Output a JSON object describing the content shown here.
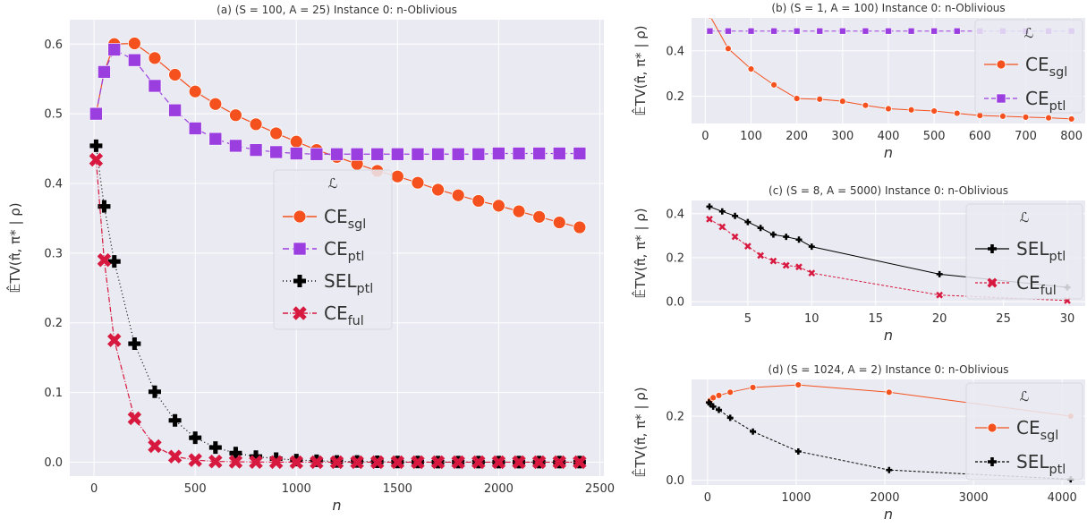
{
  "chart_data": [
    {
      "id": "a",
      "type": "line",
      "title": "(a) (S = 100, A = 25) Instance 0: n-Oblivious",
      "xlabel": "n",
      "ylabel": "𝔼̂TV(π̂, π* | ρ)",
      "xlim": [
        -120,
        2520
      ],
      "ylim": [
        -0.02,
        0.635
      ],
      "xticks": [
        0,
        500,
        1000,
        1500,
        2000,
        2500
      ],
      "yticks": [
        0.0,
        0.1,
        0.2,
        0.3,
        0.4,
        0.5,
        0.6
      ],
      "ytick_labels": [
        "0.0",
        "0.1",
        "0.2",
        "0.3",
        "0.4",
        "0.5",
        "0.6"
      ],
      "grid": true,
      "legend_title": "ℒ",
      "legend_position": "center-right",
      "series": [
        {
          "name": "CE",
          "sub": "sgl",
          "color": "#f4511e",
          "marker": "circle",
          "dash": "",
          "x": [
            10,
            50,
            100,
            200,
            300,
            400,
            500,
            600,
            700,
            800,
            900,
            1000,
            1100,
            1200,
            1300,
            1400,
            1500,
            1600,
            1700,
            1800,
            1900,
            2000,
            2100,
            2200,
            2300,
            2400
          ],
          "y": [
            0.5,
            0.56,
            0.6,
            0.601,
            0.58,
            0.556,
            0.532,
            0.514,
            0.498,
            0.485,
            0.472,
            0.46,
            0.448,
            0.438,
            0.428,
            0.418,
            0.41,
            0.401,
            0.391,
            0.383,
            0.375,
            0.368,
            0.36,
            0.352,
            0.344,
            0.337
          ]
        },
        {
          "name": "CE",
          "sub": "ptl",
          "color": "#9b3ee0",
          "marker": "square",
          "dash": "7,4",
          "x": [
            10,
            50,
            100,
            200,
            300,
            400,
            500,
            600,
            700,
            800,
            900,
            1000,
            1100,
            1200,
            1300,
            1400,
            1500,
            1600,
            1700,
            1800,
            1900,
            2000,
            2100,
            2200,
            2300,
            2400
          ],
          "y": [
            0.5,
            0.56,
            0.592,
            0.577,
            0.54,
            0.505,
            0.479,
            0.464,
            0.454,
            0.448,
            0.445,
            0.443,
            0.442,
            0.442,
            0.442,
            0.442,
            0.442,
            0.442,
            0.442,
            0.442,
            0.442,
            0.443,
            0.443,
            0.443,
            0.443,
            0.443
          ]
        },
        {
          "name": "SEL",
          "sub": "ptl",
          "color": "#000000",
          "marker": "plus",
          "dash": "1,3",
          "x": [
            10,
            50,
            100,
            200,
            300,
            400,
            500,
            600,
            700,
            800,
            900,
            1000,
            1100,
            1200,
            1300,
            1400,
            1500,
            1600,
            1700,
            1800,
            1900,
            2000,
            2100,
            2200,
            2300,
            2400
          ],
          "y": [
            0.454,
            0.367,
            0.288,
            0.17,
            0.101,
            0.06,
            0.035,
            0.021,
            0.013,
            0.008,
            0.005,
            0.003,
            0.002,
            0.001,
            0.001,
            0.0005,
            0.0003,
            0.0002,
            0.0001,
            0.0001,
            0.0,
            0.0,
            0.0,
            0.0,
            0.0,
            0.0
          ]
        },
        {
          "name": "CE",
          "sub": "ful",
          "color": "#d7193f",
          "marker": "x",
          "dash": "6,2,1,2",
          "x": [
            10,
            50,
            100,
            200,
            300,
            400,
            500,
            600,
            700,
            800,
            900,
            1000,
            1100,
            1200,
            1300,
            1400,
            1500,
            1600,
            1700,
            1800,
            1900,
            2000,
            2100,
            2200,
            2300,
            2400
          ],
          "y": [
            0.434,
            0.29,
            0.175,
            0.063,
            0.023,
            0.008,
            0.003,
            0.001,
            0.0005,
            0.0002,
            0.0001,
            0.0,
            0.0,
            0.0,
            0.0,
            0.0,
            0.0,
            0.0,
            0.0,
            0.0,
            0.0,
            0.0,
            0.0,
            0.0,
            0.0,
            0.0
          ]
        }
      ]
    },
    {
      "id": "b",
      "type": "line",
      "title": "(b) (S = 1, A = 100) Instance 0: n-Oblivious",
      "xlabel": "n",
      "ylabel": "𝔼̂TV(π̂, π* | ρ)",
      "xlim": [
        -30,
        830
      ],
      "ylim": [
        0.08,
        0.545
      ],
      "xticks": [
        0,
        100,
        200,
        300,
        400,
        500,
        600,
        700,
        800
      ],
      "yticks": [
        0.2,
        0.4
      ],
      "ytick_labels": [
        "0.2",
        "0.4"
      ],
      "grid": true,
      "legend_title": "ℒ",
      "legend_position": "top-right",
      "series": [
        {
          "name": "CE",
          "sub": "sgl",
          "color": "#f4511e",
          "marker": "circle",
          "dash": "",
          "x": [
            10,
            50,
            100,
            150,
            200,
            250,
            300,
            350,
            400,
            450,
            500,
            550,
            600,
            650,
            700,
            750,
            800
          ],
          "y": [
            0.555,
            0.41,
            0.32,
            0.25,
            0.19,
            0.187,
            0.178,
            0.16,
            0.145,
            0.14,
            0.135,
            0.125,
            0.115,
            0.112,
            0.108,
            0.105,
            0.1
          ]
        },
        {
          "name": "CE",
          "sub": "ptl",
          "color": "#9b3ee0",
          "marker": "square",
          "dash": "5,3",
          "x": [
            10,
            50,
            100,
            150,
            200,
            250,
            300,
            350,
            400,
            450,
            500,
            550,
            600,
            650,
            700,
            750,
            800
          ],
          "y": [
            0.487,
            0.487,
            0.487,
            0.487,
            0.487,
            0.487,
            0.487,
            0.487,
            0.487,
            0.487,
            0.487,
            0.487,
            0.487,
            0.487,
            0.487,
            0.487,
            0.487
          ]
        }
      ]
    },
    {
      "id": "c",
      "type": "line",
      "title": "(c) (S = 8, A = 5000) Instance 0: n-Oblivious",
      "xlabel": "n",
      "ylabel": "𝔼̂TV(π̂, π* | ρ)",
      "xlim": [
        0.6,
        31.4
      ],
      "ylim": [
        -0.02,
        0.46
      ],
      "xticks": [
        5,
        10,
        15,
        20,
        25,
        30
      ],
      "yticks": [
        0.0,
        0.2,
        0.4
      ],
      "ytick_labels": [
        "0.0",
        "0.2",
        "0.4"
      ],
      "grid": true,
      "legend_title": "ℒ",
      "legend_position": "top-right",
      "series": [
        {
          "name": "SEL",
          "sub": "ptl",
          "color": "#000000",
          "marker": "plus",
          "dash": "",
          "x": [
            2,
            3,
            4,
            5,
            6,
            7,
            8,
            9,
            10,
            20,
            30
          ],
          "y": [
            0.432,
            0.41,
            0.39,
            0.362,
            0.335,
            0.305,
            0.295,
            0.282,
            0.25,
            0.125,
            0.065
          ]
        },
        {
          "name": "CE",
          "sub": "ful",
          "color": "#d7193f",
          "marker": "x",
          "dash": "3,2",
          "x": [
            2,
            3,
            4,
            5,
            6,
            7,
            8,
            9,
            10,
            20,
            30
          ],
          "y": [
            0.375,
            0.34,
            0.295,
            0.252,
            0.21,
            0.185,
            0.165,
            0.158,
            0.13,
            0.03,
            0.005
          ]
        }
      ]
    },
    {
      "id": "d",
      "type": "line",
      "title": "(d) (S = 1024, A = 2) Instance 0: n-Oblivious",
      "xlabel": "n",
      "ylabel": "𝔼̂TV(π̂, π* | ρ)",
      "xlim": [
        -180,
        4260
      ],
      "ylim": [
        -0.015,
        0.315
      ],
      "xticks": [
        0,
        1000,
        2000,
        3000,
        4000
      ],
      "yticks": [
        0.0,
        0.2
      ],
      "ytick_labels": [
        "0.0",
        "0.2"
      ],
      "grid": true,
      "legend_title": "ℒ",
      "legend_position": "right",
      "series": [
        {
          "name": "CE",
          "sub": "sgl",
          "color": "#f4511e",
          "marker": "circle",
          "dash": "",
          "x": [
            16,
            32,
            64,
            128,
            256,
            512,
            1024,
            2048,
            4096
          ],
          "y": [
            0.245,
            0.25,
            0.258,
            0.265,
            0.275,
            0.29,
            0.298,
            0.275,
            0.2
          ]
        },
        {
          "name": "SEL",
          "sub": "ptl",
          "color": "#000000",
          "marker": "plus",
          "dash": "3,2",
          "x": [
            16,
            32,
            64,
            128,
            256,
            512,
            1024,
            2048,
            4096
          ],
          "y": [
            0.243,
            0.238,
            0.23,
            0.22,
            0.195,
            0.152,
            0.09,
            0.032,
            0.003
          ]
        }
      ]
    }
  ]
}
